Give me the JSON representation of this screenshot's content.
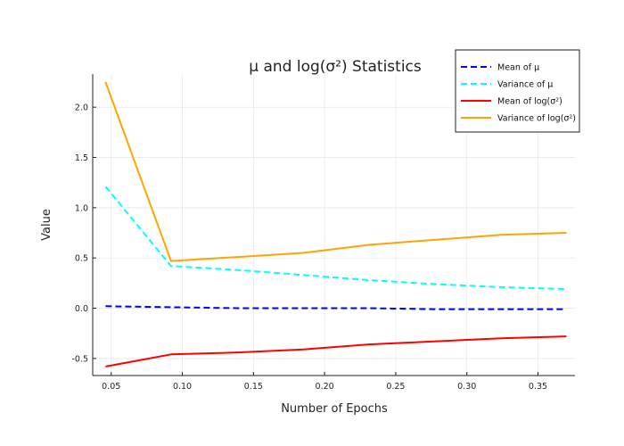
{
  "chart_data": {
    "type": "line",
    "title": "μ and log(σ²) Statistics",
    "xlabel": "Number of Epochs",
    "ylabel": "Value",
    "xlim": [
      0.037,
      0.376
    ],
    "ylim": [
      -0.67,
      2.33
    ],
    "xticks": [
      0.05,
      0.1,
      0.15,
      0.2,
      0.25,
      0.3,
      0.35
    ],
    "xtick_labels": [
      "0.05",
      "0.10",
      "0.15",
      "0.20",
      "0.25",
      "0.30",
      "0.35"
    ],
    "yticks": [
      -0.5,
      0.0,
      0.5,
      1.0,
      1.5,
      2.0
    ],
    "ytick_labels": [
      "-0.5",
      "0.0",
      "0.5",
      "1.0",
      "1.5",
      "2.0"
    ],
    "grid": true,
    "legend_position": "top-right",
    "x": [
      0.046,
      0.092,
      0.139,
      0.185,
      0.231,
      0.277,
      0.324,
      0.37
    ],
    "series": [
      {
        "name": "Mean of μ",
        "color": "#0000ff",
        "dash": "dashed",
        "values": [
          0.02,
          0.01,
          0.0,
          0.0,
          0.0,
          -0.01,
          -0.01,
          -0.01
        ]
      },
      {
        "name": "Variance of μ",
        "color": "#00ffff",
        "dash": "dashed",
        "values": [
          1.21,
          0.42,
          0.38,
          0.33,
          0.28,
          0.24,
          0.21,
          0.19
        ]
      },
      {
        "name": "Mean of log(σ²)",
        "color": "#ff0000",
        "dash": "solid",
        "values": [
          -0.58,
          -0.46,
          -0.44,
          -0.41,
          -0.36,
          -0.33,
          -0.3,
          -0.28
        ]
      },
      {
        "name": "Variance of log(σ²)",
        "color": "#ffa500",
        "dash": "solid",
        "values": [
          2.25,
          0.47,
          0.51,
          0.55,
          0.63,
          0.68,
          0.73,
          0.75
        ]
      }
    ]
  }
}
